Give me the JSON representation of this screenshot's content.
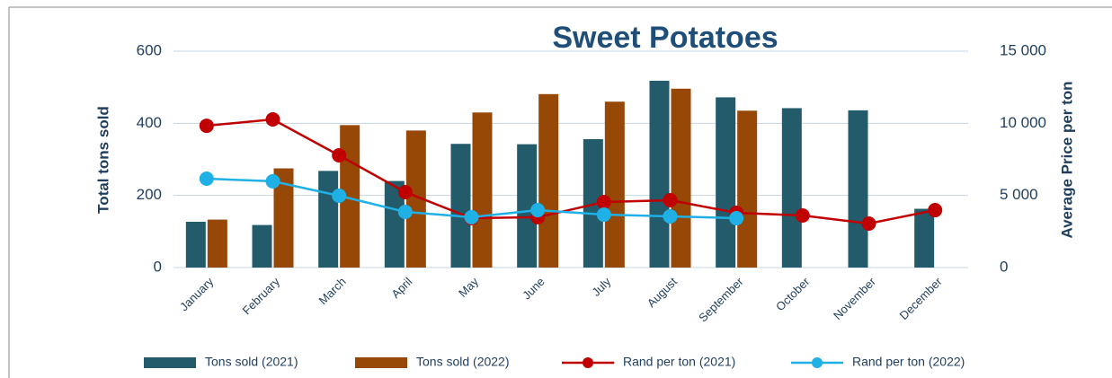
{
  "chart_data": {
    "type": "bar-line",
    "title": "Sweet Potatoes",
    "ylabel": "Total tons sold",
    "y2label": "Average Price per ton",
    "categories": [
      "January",
      "February",
      "March",
      "April",
      "May",
      "June",
      "July",
      "August",
      "September",
      "October",
      "November",
      "December"
    ],
    "ylim": [
      0,
      600
    ],
    "yticks": [
      0,
      200,
      400,
      600
    ],
    "y2lim": [
      0,
      15000
    ],
    "y2ticks": [
      0,
      {
        "value": 5000,
        "label": "5 000"
      },
      {
        "value": 10000,
        "label": "10 000"
      },
      {
        "value": 15000,
        "label": "15 000"
      }
    ],
    "grid": true,
    "legend": "bottom",
    "series": [
      {
        "name": "Tons sold (2021)",
        "type": "bar",
        "color": "#245b6b",
        "values": [
          127,
          118,
          268,
          240,
          343,
          342,
          356,
          518,
          472,
          442,
          436,
          163
        ]
      },
      {
        "name": "Tons sold (2022)",
        "type": "bar",
        "color": "#974706",
        "values": [
          133,
          275,
          395,
          380,
          430,
          481,
          460,
          496,
          435,
          null,
          null,
          null
        ]
      },
      {
        "name": "Rand per ton (2021)",
        "type": "line",
        "axis": "y2",
        "color": "#c00000",
        "values": [
          9830,
          10270,
          7780,
          5230,
          3420,
          3490,
          4540,
          4670,
          3800,
          3610,
          3050,
          3980
        ]
      },
      {
        "name": "Rand per ton (2022)",
        "type": "line",
        "axis": "y2",
        "color": "#1fb0e6",
        "values": [
          6160,
          5980,
          4980,
          3860,
          3490,
          3980,
          3670,
          3550,
          3420,
          null,
          null,
          null
        ]
      }
    ]
  }
}
